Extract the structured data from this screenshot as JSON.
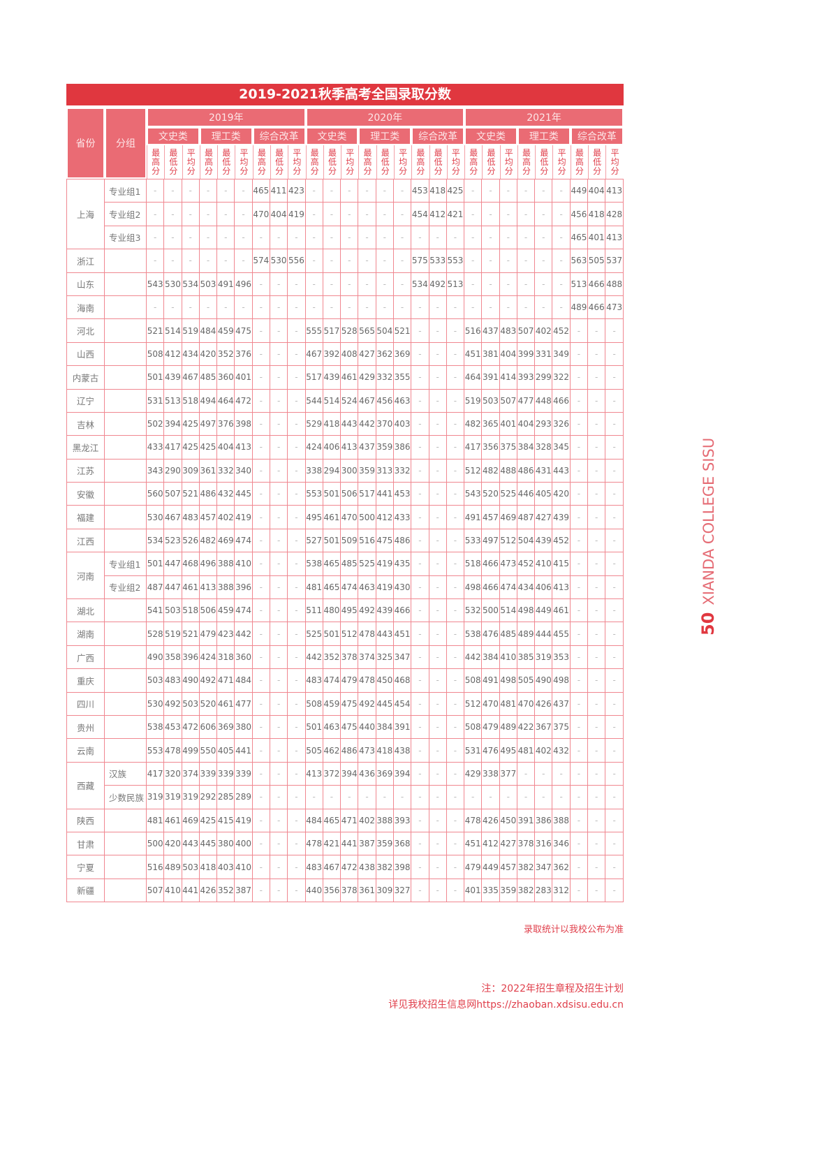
{
  "title": "2019-2021秋季高考全国录取分数",
  "headers": {
    "province": "省份",
    "group": "分组",
    "years": [
      "2019年",
      "2020年",
      "2021年"
    ],
    "categories": [
      "文史类",
      "理工类",
      "综合改革"
    ],
    "subs": [
      "最高分",
      "最低分",
      "平均分"
    ]
  },
  "rows": [
    {
      "province": "上海",
      "group": "专业组1",
      "span": 3,
      "values": [
        "-",
        "-",
        "-",
        "-",
        "-",
        "-",
        "465",
        "411",
        "423",
        "-",
        "-",
        "-",
        "-",
        "-",
        "-",
        "453",
        "418",
        "425",
        "-",
        "-",
        "-",
        "-",
        "-",
        "-",
        "449",
        "404",
        "413"
      ]
    },
    {
      "group": "专业组2",
      "values": [
        "-",
        "-",
        "-",
        "-",
        "-",
        "-",
        "470",
        "404",
        "419",
        "-",
        "-",
        "-",
        "-",
        "-",
        "-",
        "454",
        "412",
        "421",
        "-",
        "-",
        "-",
        "-",
        "-",
        "-",
        "456",
        "418",
        "428"
      ]
    },
    {
      "group": "专业组3",
      "values": [
        "-",
        "-",
        "-",
        "-",
        "-",
        "-",
        "-",
        "-",
        "-",
        "-",
        "-",
        "-",
        "-",
        "-",
        "-",
        "-",
        "-",
        "-",
        "-",
        "-",
        "-",
        "-",
        "-",
        "-",
        "465",
        "401",
        "413"
      ]
    },
    {
      "province": "浙江",
      "group": "",
      "values": [
        "-",
        "-",
        "-",
        "-",
        "-",
        "-",
        "574",
        "530",
        "556",
        "-",
        "-",
        "-",
        "-",
        "-",
        "-",
        "575",
        "533",
        "553",
        "-",
        "-",
        "-",
        "-",
        "-",
        "-",
        "563",
        "505",
        "537"
      ]
    },
    {
      "province": "山东",
      "group": "",
      "values": [
        "543",
        "530",
        "534",
        "503",
        "491",
        "496",
        "-",
        "-",
        "-",
        "-",
        "-",
        "-",
        "-",
        "-",
        "-",
        "534",
        "492",
        "513",
        "-",
        "-",
        "-",
        "-",
        "-",
        "-",
        "513",
        "466",
        "488"
      ]
    },
    {
      "province": "海南",
      "group": "",
      "values": [
        "-",
        "-",
        "-",
        "-",
        "-",
        "-",
        "-",
        "-",
        "-",
        "-",
        "-",
        "-",
        "-",
        "-",
        "-",
        "-",
        "-",
        "-",
        "-",
        "-",
        "-",
        "-",
        "-",
        "-",
        "489",
        "466",
        "473"
      ]
    },
    {
      "province": "河北",
      "group": "",
      "values": [
        "521",
        "514",
        "519",
        "484",
        "459",
        "475",
        "-",
        "-",
        "-",
        "555",
        "517",
        "528",
        "565",
        "504",
        "521",
        "-",
        "-",
        "-",
        "516",
        "437",
        "483",
        "507",
        "402",
        "452",
        "-",
        "-",
        "-"
      ]
    },
    {
      "province": "山西",
      "group": "",
      "values": [
        "508",
        "412",
        "434",
        "420",
        "352",
        "376",
        "-",
        "-",
        "-",
        "467",
        "392",
        "408",
        "427",
        "362",
        "369",
        "-",
        "-",
        "-",
        "451",
        "381",
        "404",
        "399",
        "331",
        "349",
        "-",
        "-",
        "-"
      ]
    },
    {
      "province": "内蒙古",
      "group": "",
      "values": [
        "501",
        "439",
        "467",
        "485",
        "360",
        "401",
        "-",
        "-",
        "-",
        "517",
        "439",
        "461",
        "429",
        "332",
        "355",
        "-",
        "-",
        "-",
        "464",
        "391",
        "414",
        "393",
        "299",
        "322",
        "-",
        "-",
        "-"
      ]
    },
    {
      "province": "辽宁",
      "group": "",
      "values": [
        "531",
        "513",
        "518",
        "494",
        "464",
        "472",
        "-",
        "-",
        "-",
        "544",
        "514",
        "524",
        "467",
        "456",
        "463",
        "-",
        "-",
        "-",
        "519",
        "503",
        "507",
        "477",
        "448",
        "466",
        "-",
        "-",
        "-"
      ]
    },
    {
      "province": "吉林",
      "group": "",
      "values": [
        "502",
        "394",
        "425",
        "497",
        "376",
        "398",
        "-",
        "-",
        "-",
        "529",
        "418",
        "443",
        "442",
        "370",
        "403",
        "-",
        "-",
        "-",
        "482",
        "365",
        "401",
        "404",
        "293",
        "326",
        "-",
        "-",
        "-"
      ]
    },
    {
      "province": "黑龙江",
      "group": "",
      "values": [
        "433",
        "417",
        "425",
        "425",
        "404",
        "413",
        "-",
        "-",
        "-",
        "424",
        "406",
        "413",
        "437",
        "359",
        "386",
        "-",
        "-",
        "-",
        "417",
        "356",
        "375",
        "384",
        "328",
        "345",
        "-",
        "-",
        "-"
      ]
    },
    {
      "province": "江苏",
      "group": "",
      "values": [
        "343",
        "290",
        "309",
        "361",
        "332",
        "340",
        "-",
        "-",
        "-",
        "338",
        "294",
        "300",
        "359",
        "313",
        "332",
        "-",
        "-",
        "-",
        "512",
        "482",
        "488",
        "486",
        "431",
        "443",
        "-",
        "-",
        "-"
      ]
    },
    {
      "province": "安徽",
      "group": "",
      "values": [
        "560",
        "507",
        "521",
        "486",
        "432",
        "445",
        "-",
        "-",
        "-",
        "553",
        "501",
        "506",
        "517",
        "441",
        "453",
        "-",
        "-",
        "-",
        "543",
        "520",
        "525",
        "446",
        "405",
        "420",
        "-",
        "-",
        "-"
      ]
    },
    {
      "province": "福建",
      "group": "",
      "values": [
        "530",
        "467",
        "483",
        "457",
        "402",
        "419",
        "-",
        "-",
        "-",
        "495",
        "461",
        "470",
        "500",
        "412",
        "433",
        "-",
        "-",
        "-",
        "491",
        "457",
        "469",
        "487",
        "427",
        "439",
        "-",
        "-",
        "-"
      ]
    },
    {
      "province": "江西",
      "group": "",
      "values": [
        "534",
        "523",
        "526",
        "482",
        "469",
        "474",
        "-",
        "-",
        "-",
        "527",
        "501",
        "509",
        "516",
        "475",
        "486",
        "-",
        "-",
        "-",
        "533",
        "497",
        "512",
        "504",
        "439",
        "452",
        "-",
        "-",
        "-"
      ]
    },
    {
      "province": "河南",
      "group": "专业组1",
      "span": 2,
      "values": [
        "501",
        "447",
        "468",
        "496",
        "388",
        "410",
        "-",
        "-",
        "-",
        "538",
        "465",
        "485",
        "525",
        "419",
        "435",
        "-",
        "-",
        "-",
        "518",
        "466",
        "473",
        "452",
        "410",
        "415",
        "-",
        "-",
        "-"
      ]
    },
    {
      "group": "专业组2",
      "values": [
        "487",
        "447",
        "461",
        "413",
        "388",
        "396",
        "-",
        "-",
        "-",
        "481",
        "465",
        "474",
        "463",
        "419",
        "430",
        "-",
        "-",
        "-",
        "498",
        "466",
        "474",
        "434",
        "406",
        "413",
        "-",
        "-",
        "-"
      ]
    },
    {
      "province": "湖北",
      "group": "",
      "values": [
        "541",
        "503",
        "518",
        "506",
        "459",
        "474",
        "-",
        "-",
        "-",
        "511",
        "480",
        "495",
        "492",
        "439",
        "466",
        "-",
        "-",
        "-",
        "532",
        "500",
        "514",
        "498",
        "449",
        "461",
        "-",
        "-",
        "-"
      ]
    },
    {
      "province": "湖南",
      "group": "",
      "values": [
        "528",
        "519",
        "521",
        "479",
        "423",
        "442",
        "-",
        "-",
        "-",
        "525",
        "501",
        "512",
        "478",
        "443",
        "451",
        "-",
        "-",
        "-",
        "538",
        "476",
        "485",
        "489",
        "444",
        "455",
        "-",
        "-",
        "-"
      ]
    },
    {
      "province": "广西",
      "group": "",
      "values": [
        "490",
        "358",
        "396",
        "424",
        "318",
        "360",
        "-",
        "-",
        "-",
        "442",
        "352",
        "378",
        "374",
        "325",
        "347",
        "-",
        "-",
        "-",
        "442",
        "384",
        "410",
        "385",
        "319",
        "353",
        "-",
        "-",
        "-"
      ]
    },
    {
      "province": "重庆",
      "group": "",
      "values": [
        "503",
        "483",
        "490",
        "492",
        "471",
        "484",
        "-",
        "-",
        "-",
        "483",
        "474",
        "479",
        "478",
        "450",
        "468",
        "-",
        "-",
        "-",
        "508",
        "491",
        "498",
        "505",
        "490",
        "498",
        "-",
        "-",
        "-"
      ]
    },
    {
      "province": "四川",
      "group": "",
      "values": [
        "530",
        "492",
        "503",
        "520",
        "461",
        "477",
        "-",
        "-",
        "-",
        "508",
        "459",
        "475",
        "492",
        "445",
        "454",
        "-",
        "-",
        "-",
        "512",
        "470",
        "481",
        "470",
        "426",
        "437",
        "-",
        "-",
        "-"
      ]
    },
    {
      "province": "贵州",
      "group": "",
      "values": [
        "538",
        "453",
        "472",
        "606",
        "369",
        "380",
        "-",
        "-",
        "-",
        "501",
        "463",
        "475",
        "440",
        "384",
        "391",
        "-",
        "-",
        "-",
        "508",
        "479",
        "489",
        "422",
        "367",
        "375",
        "-",
        "-",
        "-"
      ]
    },
    {
      "province": "云南",
      "group": "",
      "values": [
        "553",
        "478",
        "499",
        "550",
        "405",
        "441",
        "-",
        "-",
        "-",
        "505",
        "462",
        "486",
        "473",
        "418",
        "438",
        "-",
        "-",
        "-",
        "531",
        "476",
        "495",
        "481",
        "402",
        "432",
        "-",
        "-",
        "-"
      ]
    },
    {
      "province": "西藏",
      "group": "汉族",
      "span": 2,
      "values": [
        "417",
        "320",
        "374",
        "339",
        "339",
        "339",
        "-",
        "-",
        "-",
        "413",
        "372",
        "394",
        "436",
        "369",
        "394",
        "-",
        "-",
        "-",
        "429",
        "338",
        "377",
        "-",
        "-",
        "-",
        "-",
        "-",
        "-"
      ]
    },
    {
      "group": "少数民族",
      "values": [
        "319",
        "319",
        "319",
        "292",
        "285",
        "289",
        "-",
        "-",
        "-",
        "-",
        "-",
        "-",
        "-",
        "-",
        "-",
        "-",
        "-",
        "-",
        "-",
        "-",
        "-",
        "-",
        "-",
        "-",
        "-",
        "-",
        "-"
      ]
    },
    {
      "province": "陕西",
      "group": "",
      "values": [
        "481",
        "461",
        "469",
        "425",
        "415",
        "419",
        "-",
        "-",
        "-",
        "484",
        "465",
        "471",
        "402",
        "388",
        "393",
        "-",
        "-",
        "-",
        "478",
        "426",
        "450",
        "391",
        "386",
        "388",
        "-",
        "-",
        "-"
      ]
    },
    {
      "province": "甘肃",
      "group": "",
      "values": [
        "500",
        "420",
        "443",
        "445",
        "380",
        "400",
        "-",
        "-",
        "-",
        "478",
        "421",
        "441",
        "387",
        "359",
        "368",
        "-",
        "-",
        "-",
        "451",
        "412",
        "427",
        "378",
        "316",
        "346",
        "-",
        "-",
        "-"
      ]
    },
    {
      "province": "宁夏",
      "group": "",
      "values": [
        "516",
        "489",
        "503",
        "418",
        "403",
        "410",
        "-",
        "-",
        "-",
        "483",
        "467",
        "472",
        "438",
        "382",
        "398",
        "-",
        "-",
        "-",
        "479",
        "449",
        "457",
        "382",
        "347",
        "362",
        "-",
        "-",
        "-"
      ]
    },
    {
      "province": "新疆",
      "group": "",
      "values": [
        "507",
        "410",
        "441",
        "426",
        "352",
        "387",
        "-",
        "-",
        "-",
        "440",
        "356",
        "378",
        "361",
        "309",
        "327",
        "-",
        "-",
        "-",
        "401",
        "335",
        "359",
        "382",
        "283",
        "312",
        "-",
        "-",
        "-"
      ]
    }
  ],
  "notes": {
    "disclaimer": "录取统计以我校公布为准",
    "note_line1": "注：2022年招生章程及招生计划",
    "note_line2": "详见我校招生信息网https://zhaoban.xdsisu.edu.cn"
  },
  "side": {
    "page_number": "50",
    "college": "XIANDA COLLEGE SISU"
  },
  "colors": {
    "accent": "#e0373f",
    "header_bg": "#ea6b74",
    "grid": "#f08790"
  }
}
